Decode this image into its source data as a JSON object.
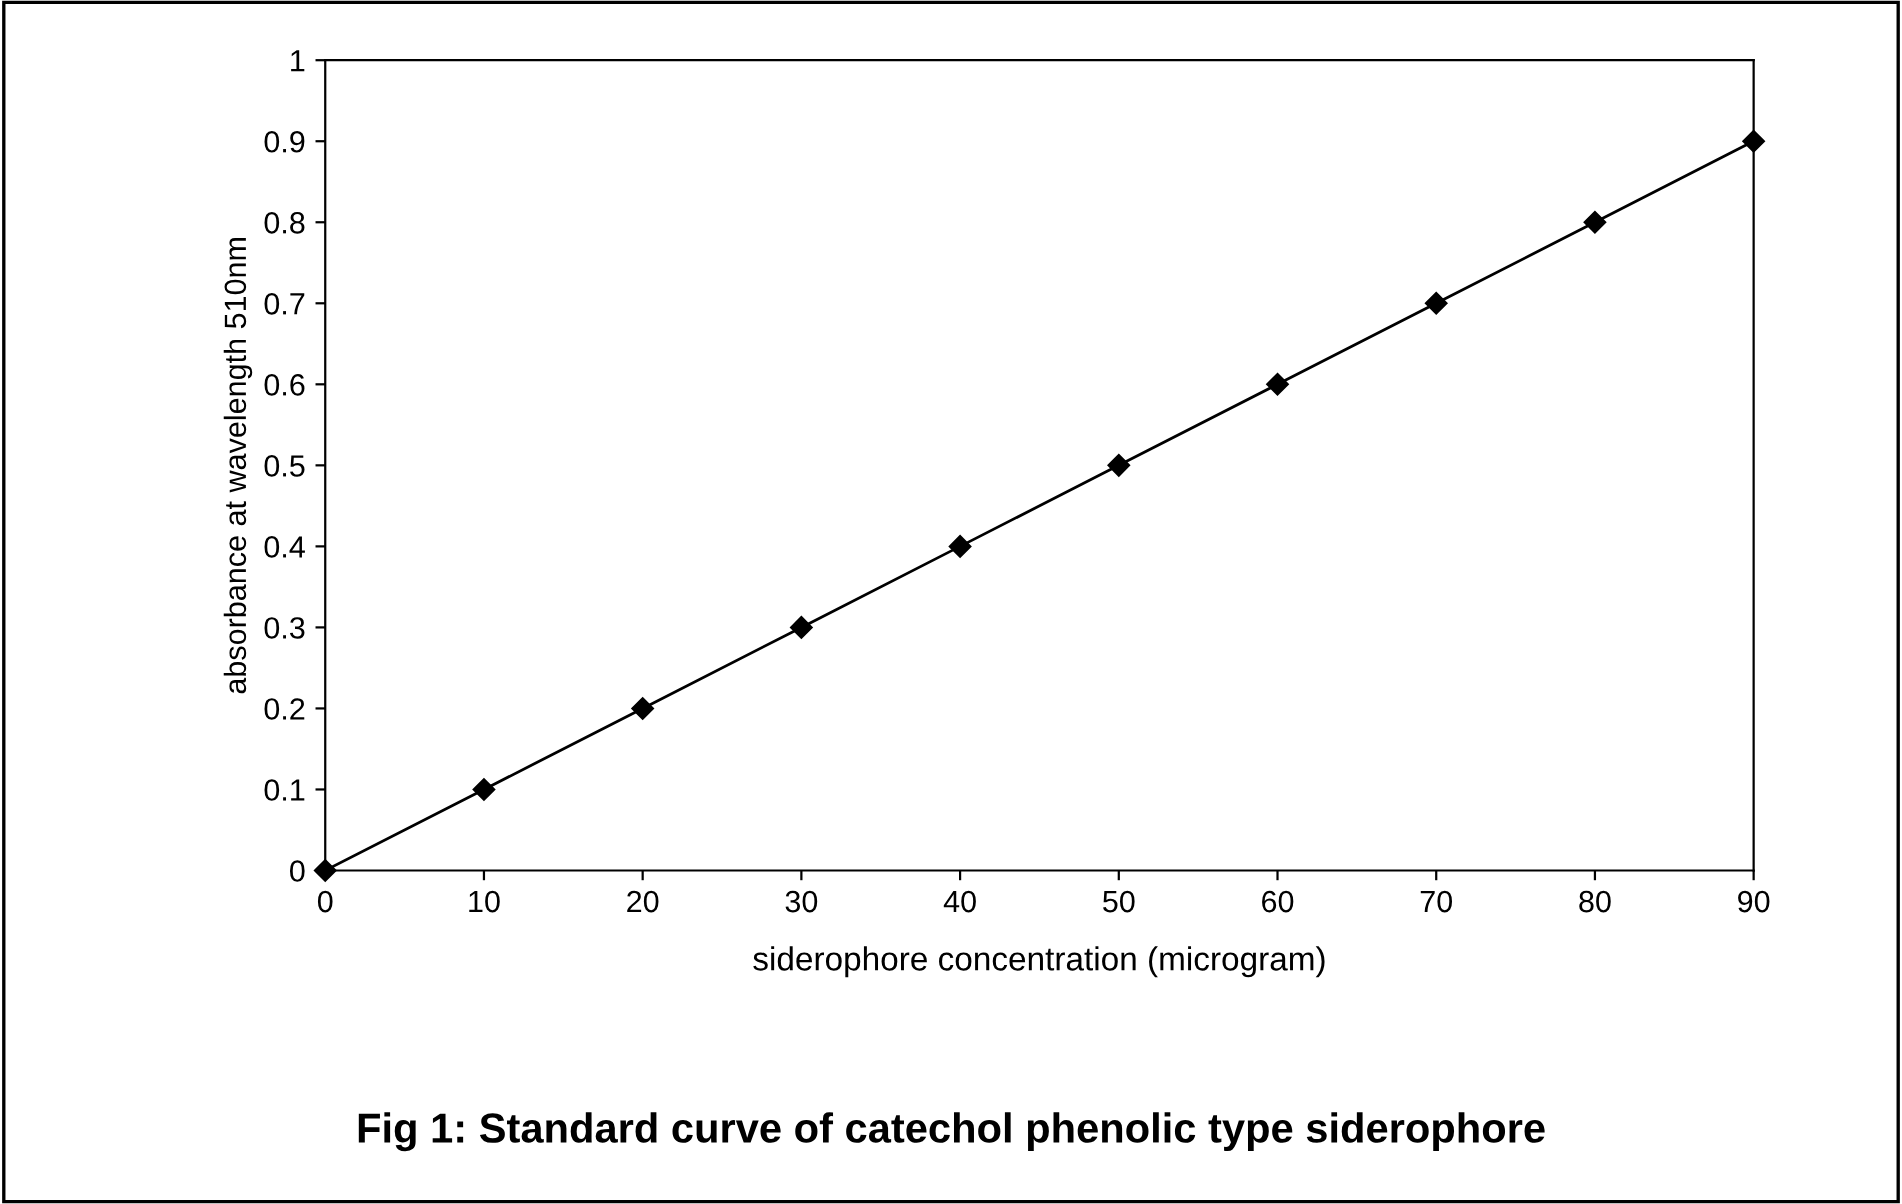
{
  "chart_data": {
    "type": "line",
    "title": "Fig 1: Standard curve of catechol phenolic type siderophore",
    "xlabel": "siderophore concentration (microgram)",
    "ylabel": "absorbance at wavelength 510nm",
    "x": [
      0,
      10,
      20,
      30,
      40,
      50,
      60,
      70,
      80,
      90
    ],
    "series": [
      {
        "color": "#000000",
        "values": [
          0,
          0.1,
          0.2,
          0.3,
          0.4,
          0.5,
          0.6,
          0.7,
          0.8,
          0.9
        ]
      }
    ],
    "xlim": [
      0,
      90
    ],
    "xticks": [
      0,
      10,
      20,
      30,
      40,
      50,
      60,
      70,
      80,
      90
    ],
    "ylim": [
      0,
      1
    ],
    "yticks": [
      0,
      0.1,
      0.2,
      0.3,
      0.4,
      0.5,
      0.6,
      0.7,
      0.8,
      0.9,
      1
    ],
    "marker": "diamond",
    "line_style": "solid",
    "grid": false
  }
}
